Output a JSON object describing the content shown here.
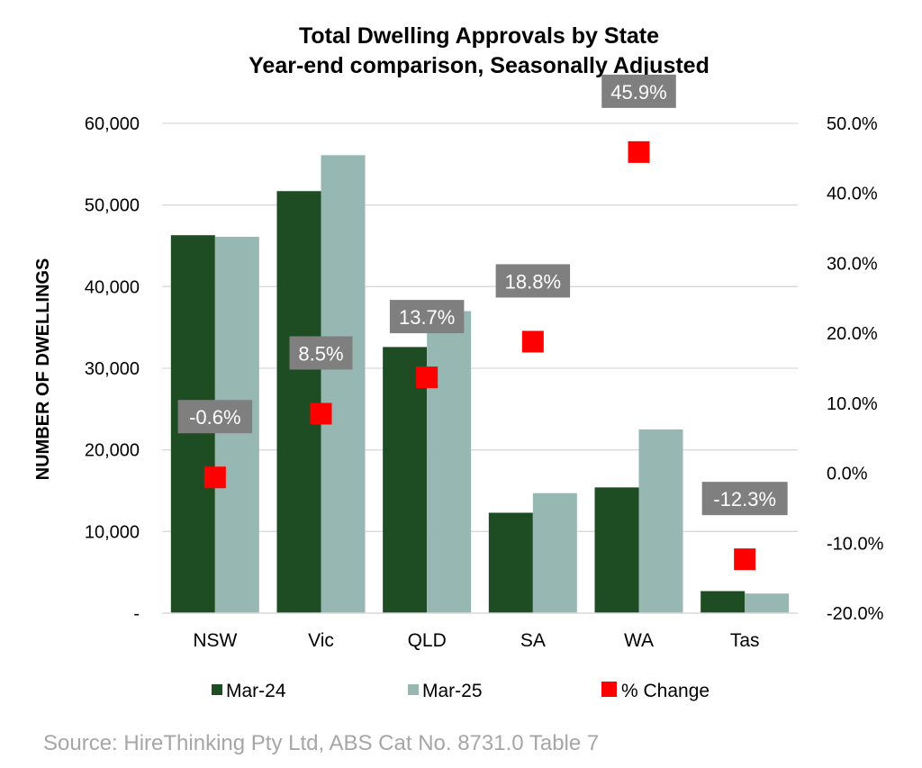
{
  "chart_data": {
    "type": "bar",
    "title": "Total Dwelling Approvals by State",
    "subtitle": "Year-end comparison, Seasonally Adjusted",
    "ylabel": "NUMBER OF DWELLINGS",
    "categories": [
      "NSW",
      "Vic",
      "QLD",
      "SA",
      "WA",
      "Tas"
    ],
    "series": [
      {
        "name": "Mar-24",
        "color": "#1e4d23",
        "axis": "left",
        "values": [
          46300,
          51700,
          32600,
          12300,
          15400,
          2700
        ]
      },
      {
        "name": "Mar-25",
        "color": "#97b8b2",
        "axis": "left",
        "values": [
          46100,
          56100,
          37000,
          14700,
          22500,
          2400
        ]
      },
      {
        "name": "% Change",
        "color": "#ff0000",
        "axis": "right",
        "marker": "square",
        "values": [
          -0.6,
          8.5,
          13.7,
          18.8,
          45.9,
          -12.3
        ],
        "labels": [
          "-0.6%",
          "8.5%",
          "13.7%",
          "18.8%",
          "45.9%",
          "-12.3%"
        ]
      }
    ],
    "ylim": [
      0,
      60000
    ],
    "yticks": [
      0,
      10000,
      20000,
      30000,
      40000,
      50000,
      60000
    ],
    "ytick_labels": [
      "-",
      "10,000",
      "20,000",
      "30,000",
      "40,000",
      "50,000",
      "60,000"
    ],
    "y2lim": [
      -20,
      50
    ],
    "y2ticks": [
      -20,
      -10,
      0,
      10,
      20,
      30,
      40,
      50
    ],
    "y2tick_labels": [
      "-20.0%",
      "-10.0%",
      "0.0%",
      "10.0%",
      "20.0%",
      "30.0%",
      "40.0%",
      "50.0%"
    ],
    "grid": true,
    "legend": "bottom",
    "label_box_color": "#7f7f7f",
    "gridline_color": "#d9d9d9"
  },
  "source": "Source: HireThinking Pty Ltd, ABS Cat No. 8731.0 Table 7"
}
